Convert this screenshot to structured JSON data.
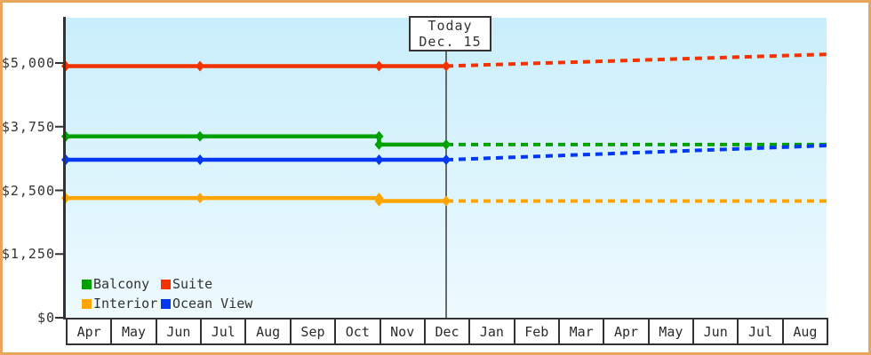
{
  "window": {
    "frame_color": "#e9a55c",
    "background": "#ffffff"
  },
  "chart_data": {
    "type": "line",
    "title": "",
    "xlabel": "",
    "ylabel": "",
    "grid": false,
    "axis_color": "#333333",
    "plot_background": {
      "top": "#c9eefb",
      "bottom": "#eefafe"
    },
    "x_categories": [
      "Apr",
      "May",
      "Jun",
      "Jul",
      "Aug",
      "Sep",
      "Oct",
      "Nov",
      "Dec",
      "Jan",
      "Feb",
      "Mar",
      "Apr",
      "May",
      "Jun",
      "Jul",
      "Aug"
    ],
    "x_range_months": [
      0,
      17
    ],
    "y_axis": {
      "range": [
        0,
        5890
      ],
      "ticks": [
        {
          "label": "$5,000",
          "value": 5000
        },
        {
          "label": "$3,750",
          "value": 3750
        },
        {
          "label": "$2,500",
          "value": 2500
        },
        {
          "label": "$1,250",
          "value": 1250
        },
        {
          "label": "$0",
          "value": 0
        }
      ]
    },
    "today": {
      "x": 8.5,
      "label_line1": "Today",
      "label_line2": "Dec. 15",
      "line_color": "#3c3c3c"
    },
    "series": [
      {
        "name": "Suite",
        "color": "#f23300",
        "style_after_today": "dashed",
        "solid": [
          [
            0,
            4940
          ],
          [
            3,
            4940
          ],
          [
            7,
            4940
          ],
          [
            8.5,
            4940
          ]
        ],
        "forecast": [
          [
            8.5,
            4940
          ],
          [
            17,
            5170
          ]
        ]
      },
      {
        "name": "Balcony",
        "color": "#00a000",
        "style_after_today": "dashed",
        "solid": [
          [
            0,
            3560
          ],
          [
            3,
            3560
          ],
          [
            7,
            3560
          ],
          [
            7,
            3400
          ],
          [
            8.5,
            3400
          ]
        ],
        "forecast": [
          [
            8.5,
            3400
          ],
          [
            17,
            3400
          ]
        ]
      },
      {
        "name": "Ocean View",
        "color": "#0437f2",
        "style_after_today": "dashed",
        "solid": [
          [
            0,
            3100
          ],
          [
            3,
            3100
          ],
          [
            7,
            3100
          ],
          [
            8.5,
            3100
          ]
        ],
        "forecast": [
          [
            8.5,
            3100
          ],
          [
            17,
            3380
          ]
        ]
      },
      {
        "name": "Interior",
        "color": "#ffa500",
        "style_after_today": "dashed",
        "solid": [
          [
            0,
            2350
          ],
          [
            3,
            2350
          ],
          [
            7,
            2350
          ],
          [
            7,
            2290
          ],
          [
            8.5,
            2290
          ]
        ],
        "forecast": [
          [
            8.5,
            2290
          ],
          [
            17,
            2290
          ]
        ]
      }
    ],
    "legend": {
      "position": "bottom-left",
      "items": [
        "Balcony",
        "Suite",
        "Interior",
        "Ocean View"
      ]
    }
  }
}
